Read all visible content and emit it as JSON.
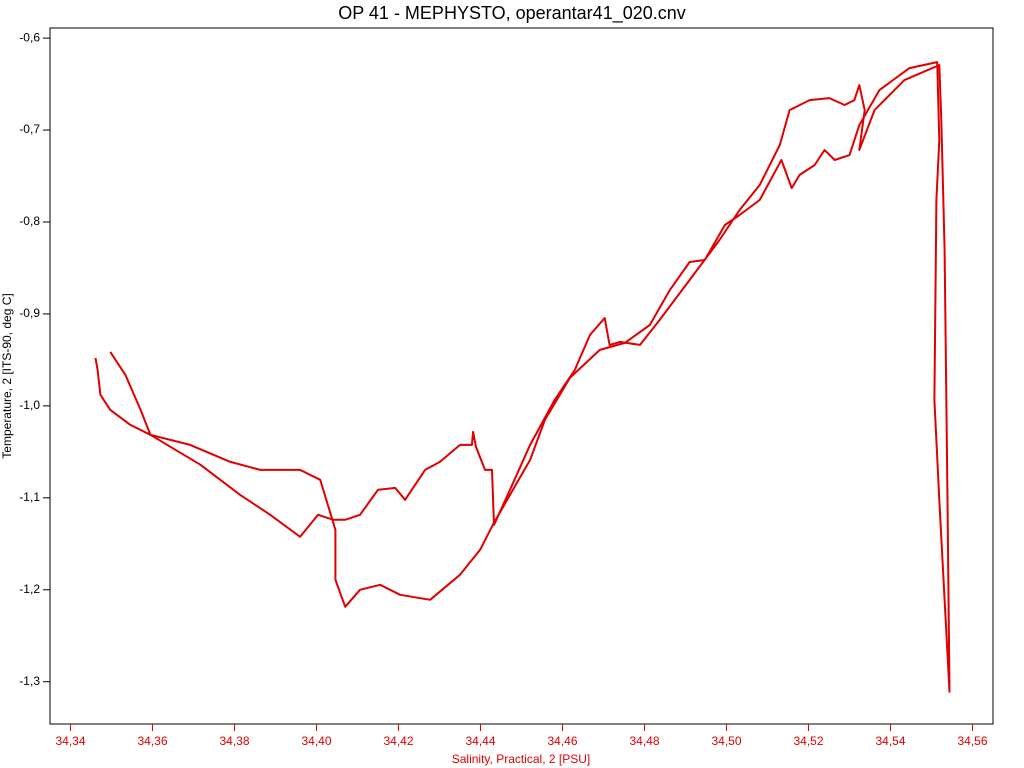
{
  "chart_data": {
    "type": "line",
    "title": "OP 41 - MEPHYSTO, operantar41_020.cnv",
    "x_label": "Salinity, Practical, 2 [PSU]",
    "y_label": "Temperature, 2 [ITS-90, deg C]",
    "color": "#e00000",
    "x": [
      34.3497,
      34.3534,
      34.3571,
      34.3595,
      34.3717,
      34.3814,
      34.3887,
      34.396,
      34.4004,
      34.4041,
      34.407,
      34.4106,
      34.415,
      34.4192,
      34.4216,
      34.4265,
      34.4301,
      34.435,
      34.4379,
      34.4382,
      34.4389,
      34.4411,
      34.4428,
      34.4433,
      34.4472,
      34.4521,
      34.4581,
      34.463,
      34.4667,
      34.4703,
      34.4715,
      34.474,
      34.4789,
      34.4837,
      34.491,
      34.4983,
      34.5032,
      34.5081,
      34.513,
      34.5154,
      34.5203,
      34.5251,
      34.5288,
      34.5312,
      34.5324,
      34.5337,
      34.5324,
      34.5361,
      34.5434,
      34.5519,
      34.5524,
      34.5532,
      34.5539,
      34.5544,
      34.5532,
      34.5519,
      34.5507,
      34.5512,
      34.5519,
      34.5514,
      34.5446,
      34.5373,
      34.5324,
      34.53,
      34.5264,
      34.5239,
      34.5215,
      34.5178,
      34.5159,
      34.5134,
      34.5081,
      34.5032,
      34.4996,
      34.4947,
      34.491,
      34.4862,
      34.4813,
      34.4752,
      34.4691,
      34.4618,
      34.4557,
      34.4521,
      34.4472,
      34.443,
      34.4399,
      34.435,
      34.4277,
      34.4204,
      34.4155,
      34.4106,
      34.407,
      34.4046,
      34.4046,
      34.4009,
      34.396,
      34.3924,
      34.3863,
      34.379,
      34.3692,
      34.3595,
      34.3546,
      34.3497,
      34.3473,
      34.3466,
      34.3461
    ],
    "values": [
      -0.9413,
      -0.9663,
      -1.0044,
      -1.0315,
      -1.0641,
      -1.0968,
      -1.1185,
      -1.1424,
      -1.1185,
      -1.1239,
      -1.1239,
      -1.1185,
      -1.0913,
      -1.0892,
      -1.1022,
      -1.0696,
      -1.0609,
      -1.0424,
      -1.0424,
      -1.0283,
      -1.0446,
      -1.0696,
      -1.0696,
      -1.1294,
      -1.0913,
      -1.0424,
      -0.9935,
      -0.9609,
      -0.9228,
      -0.9044,
      -0.9337,
      -0.9304,
      -0.9337,
      -0.9065,
      -0.8631,
      -0.8196,
      -0.787,
      -0.7598,
      -0.7163,
      -0.6783,
      -0.6674,
      -0.6652,
      -0.6728,
      -0.6674,
      -0.6511,
      -0.6783,
      -0.7217,
      -0.6783,
      -0.6457,
      -0.6293,
      -0.6891,
      -0.8304,
      -1.1022,
      -1.3109,
      -1.2109,
      -1.1022,
      -0.9935,
      -0.7761,
      -0.7109,
      -0.6261,
      -0.6326,
      -0.6565,
      -0.6946,
      -0.7272,
      -0.7326,
      -0.7217,
      -0.738,
      -0.7489,
      -0.7631,
      -0.7326,
      -0.7761,
      -0.7924,
      -0.8033,
      -0.8413,
      -0.8435,
      -0.8739,
      -0.912,
      -0.9315,
      -0.9391,
      -0.9696,
      -1.0152,
      -1.0587,
      -1.0968,
      -1.1294,
      -1.1565,
      -1.1837,
      -1.2109,
      -1.2055,
      -1.1946,
      -1.2,
      -1.2185,
      -1.1891,
      -1.1348,
      -1.0804,
      -1.0696,
      -1.0696,
      -1.0696,
      -1.0609,
      -1.0424,
      -1.0315,
      -1.0207,
      -1.0044,
      -0.988,
      -0.9609,
      -0.9478
    ],
    "xlim": [
      34.335,
      34.565
    ],
    "ylim": [
      -1.346,
      -0.589
    ],
    "xticks": [
      {
        "value": 34.34,
        "label": "34,34"
      },
      {
        "value": 34.36,
        "label": "34,36"
      },
      {
        "value": 34.38,
        "label": "34,38"
      },
      {
        "value": 34.4,
        "label": "34,40"
      },
      {
        "value": 34.42,
        "label": "34,42"
      },
      {
        "value": 34.44,
        "label": "34,44"
      },
      {
        "value": 34.46,
        "label": "34,46"
      },
      {
        "value": 34.48,
        "label": "34,48"
      },
      {
        "value": 34.5,
        "label": "34,50"
      },
      {
        "value": 34.52,
        "label": "34,52"
      },
      {
        "value": 34.54,
        "label": "34,54"
      },
      {
        "value": 34.56,
        "label": "34,56"
      }
    ],
    "yticks": [
      {
        "value": -0.6,
        "label": "-0,6"
      },
      {
        "value": -0.7,
        "label": "-0,7"
      },
      {
        "value": -0.8,
        "label": "-0,8"
      },
      {
        "value": -0.9,
        "label": "-0,9"
      },
      {
        "value": -1.0,
        "label": "-1,0"
      },
      {
        "value": -1.1,
        "label": "-1,1"
      },
      {
        "value": -1.2,
        "label": "-1,2"
      },
      {
        "value": -1.3,
        "label": "-1,3"
      }
    ],
    "x_axis_color": "#e00000",
    "y_axis_color": "#000000"
  }
}
